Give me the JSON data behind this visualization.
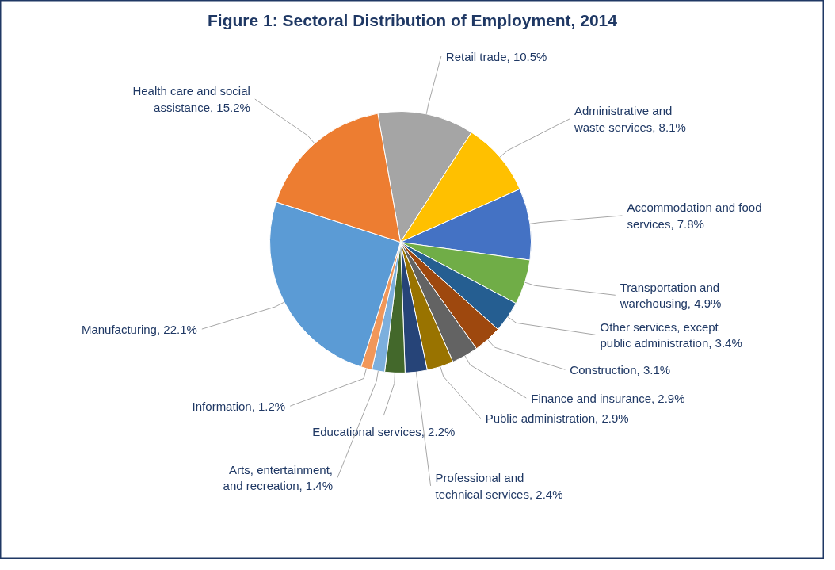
{
  "chart_data": {
    "type": "pie",
    "title": "Figure 1: Sectoral Distribution of Employment, 2014",
    "categories": [
      "Retail trade",
      "Administrative and waste services",
      "Accommodation and food services",
      "Transportation and warehousing",
      "Other services, except public administration",
      "Construction",
      "Finance and insurance",
      "Public administration",
      "Professional and technical services",
      "Educational services",
      "Arts, entertainment, and recreation",
      "Information",
      "Manufacturing",
      "Health care and social assistance"
    ],
    "values": [
      10.5,
      8.1,
      7.8,
      4.9,
      3.4,
      3.1,
      2.9,
      2.9,
      2.4,
      2.2,
      1.4,
      1.2,
      22.1,
      15.2
    ],
    "value_labels": [
      "10.5%",
      "8.1%",
      "7.8%",
      "4.9%",
      "3.4%",
      "3.1%",
      "2.9%",
      "2.9%",
      "2.4%",
      "2.2%",
      "1.4%",
      "1.2%",
      "22.1%",
      "15.2%"
    ],
    "colors": [
      "#a5a5a5",
      "#ffc000",
      "#4472c4",
      "#70ad47",
      "#255e91",
      "#9e480e",
      "#636363",
      "#997300",
      "#264478",
      "#43682b",
      "#7cafdd",
      "#f1975a",
      "#5b9bd5",
      "#ed7d31"
    ]
  }
}
